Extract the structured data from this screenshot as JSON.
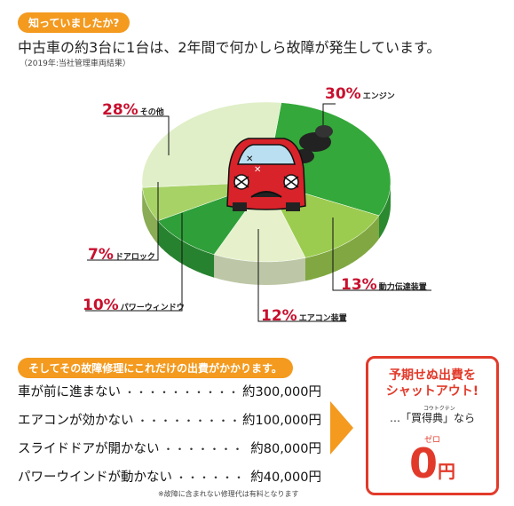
{
  "header": {
    "badge": "知っていましたか?",
    "headline": "中古車の約3台に1台は、2年間で何かしら故障が発生しています。",
    "note": "（2019年:当社管理車両結果）"
  },
  "chart_data": {
    "type": "pie",
    "slices": [
      {
        "label": "エンジン",
        "value": 30,
        "value_text": "30%",
        "color": "#34a83a"
      },
      {
        "label": "動力伝達装置",
        "value": 13,
        "value_text": "13%",
        "color": "#9ccc4f"
      },
      {
        "label": "エアコン装置",
        "value": 12,
        "value_text": "12%",
        "color": "#e6f1cb"
      },
      {
        "label": "パワーウィンドウ",
        "value": 10,
        "value_text": "10%",
        "color": "#2f9f39"
      },
      {
        "label": "ドアロック",
        "value": 7,
        "value_text": "7%",
        "color": "#a7d266"
      },
      {
        "label": "その他",
        "value": 28,
        "value_text": "28%",
        "color": "#e0efc7"
      }
    ]
  },
  "repairs": {
    "badge": "そしてその故障修理にこれだけの出費がかかります。",
    "rows": [
      {
        "issue": "車が前に進まない",
        "cost": "約300,000円"
      },
      {
        "issue": "エアコンが効かない",
        "cost": "約100,000円"
      },
      {
        "issue": "スライドドアが開かない",
        "cost": "約80,000円"
      },
      {
        "issue": "パワーウインドが動かない",
        "cost": "約40,000円"
      }
    ],
    "dots": "・・・・・・・・・・・・・・・・・・・・",
    "footnote": "※故障に含まれない修理代は有料となります"
  },
  "promo": {
    "title_line1": "予期せぬ出費を",
    "title_line2": "シャットアウト!",
    "ruby_product": "コウトクテン",
    "mid_text": "…「買得典」なら",
    "ruby_zero": "ゼロ",
    "zero": "0",
    "yen": "円",
    "accent_color": "#e23a2a"
  },
  "colors": {
    "orange": "#f39a1f",
    "red": "#c8102e"
  }
}
